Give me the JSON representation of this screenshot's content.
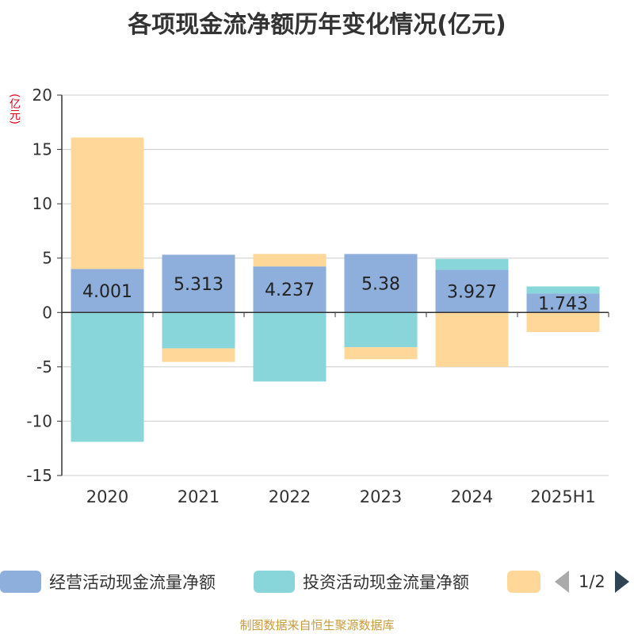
{
  "chart_data": {
    "type": "bar",
    "stacked": true,
    "title": "各项现金流净额历年变化情况(亿元)",
    "unit_label": "(亿元)",
    "categories": [
      "2020",
      "2021",
      "2022",
      "2023",
      "2024",
      "2025H1"
    ],
    "series": [
      {
        "name": "经营活动现金流量净额",
        "color": "#8eaedb",
        "values": [
          4.001,
          5.313,
          4.237,
          5.38,
          3.927,
          1.743
        ]
      },
      {
        "name": "投资活动现金流量净额",
        "color": "#88d6d9",
        "values": [
          -11.9,
          -3.3,
          -6.35,
          -3.2,
          1.0,
          0.65
        ]
      },
      {
        "name": "",
        "color": "#ffd899",
        "values": [
          12.1,
          -1.25,
          1.15,
          -1.1,
          -5.0,
          -1.8
        ]
      }
    ],
    "data_labels": [
      "4.001",
      "5.313",
      "4.237",
      "5.38",
      "3.927",
      "1.743"
    ],
    "ylim": [
      -15,
      20
    ],
    "yticks": [
      -15,
      -10,
      -5,
      0,
      5,
      10,
      15,
      20
    ],
    "grid": true,
    "legend_position": "bottom"
  },
  "legend": {
    "items": [
      "经营活动现金流量净额",
      "投资活动现金流量净额",
      ""
    ],
    "pager": "1/2"
  },
  "source": "制图数据来自恒生聚源数据库"
}
